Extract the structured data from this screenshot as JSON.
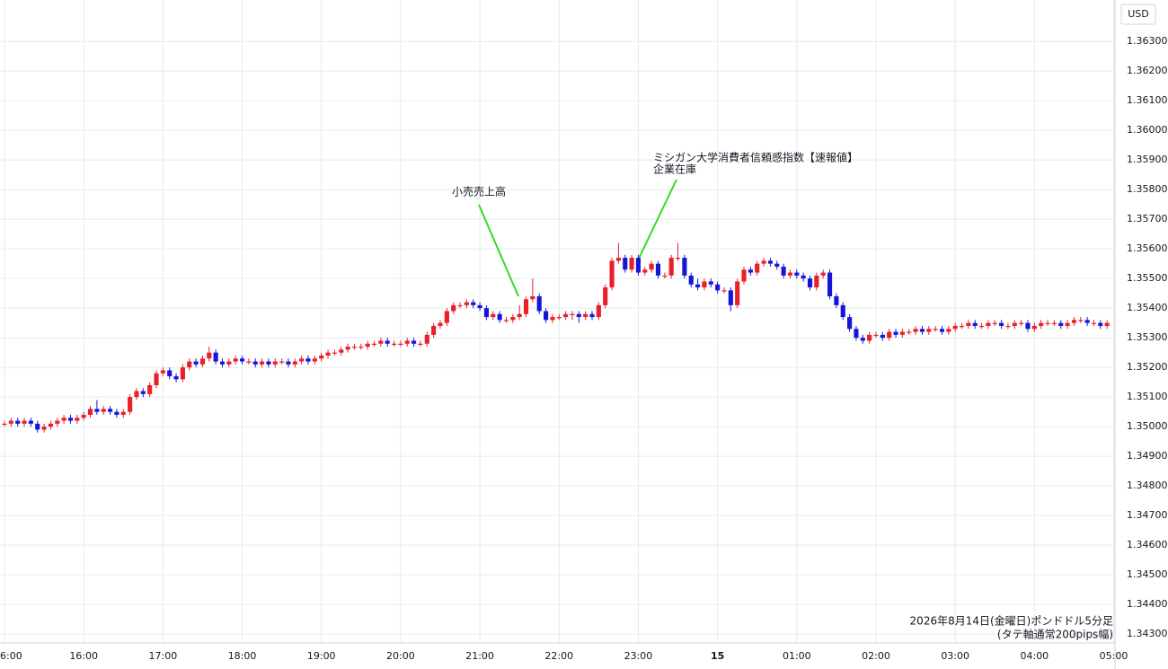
{
  "chart_data": {
    "type": "candlestick",
    "currency": "USD",
    "annotations": [
      "小売売上高",
      "ミシガン大学消費者信頼感指数【速報値】",
      "企業在庫"
    ],
    "footnote": [
      "2026年8月14日(金曜日)ポンドドル5分足",
      "(タテ軸通常200pips幅)"
    ],
    "up_color": "#e8202a",
    "down_color": "#1616d8",
    "grid": true,
    "xlim": [
      -0.68,
      168.2
    ],
    "xticks": [
      {
        "value": 0,
        "label": "6:00"
      },
      {
        "value": 12,
        "label": "16:00"
      },
      {
        "value": 24,
        "label": "17:00"
      },
      {
        "value": 36,
        "label": "18:00"
      },
      {
        "value": 48,
        "label": "19:00"
      },
      {
        "value": 60,
        "label": "20:00"
      },
      {
        "value": 72,
        "label": "21:00"
      },
      {
        "value": 84,
        "label": "22:00"
      },
      {
        "value": 96,
        "label": "23:00"
      },
      {
        "value": 108,
        "label": "15"
      },
      {
        "value": 120,
        "label": "01:00"
      },
      {
        "value": 132,
        "label": "02:00"
      },
      {
        "value": 144,
        "label": "03:00"
      },
      {
        "value": 156,
        "label": "04:00"
      },
      {
        "value": 168,
        "label": "05:00"
      }
    ],
    "ylim": [
      1.3427,
      1.3644
    ],
    "yticks": [
      {
        "value": 1.343,
        "label": "1.34300"
      },
      {
        "value": 1.344,
        "label": "1.34400"
      },
      {
        "value": 1.345,
        "label": "1.34500"
      },
      {
        "value": 1.346,
        "label": "1.34600"
      },
      {
        "value": 1.347,
        "label": "1.34700"
      },
      {
        "value": 1.348,
        "label": "1.34800"
      },
      {
        "value": 1.349,
        "label": "1.34900"
      },
      {
        "value": 1.35,
        "label": "1.35000"
      },
      {
        "value": 1.351,
        "label": "1.35100"
      },
      {
        "value": 1.352,
        "label": "1.35200"
      },
      {
        "value": 1.353,
        "label": "1.35300"
      },
      {
        "value": 1.354,
        "label": "1.35400"
      },
      {
        "value": 1.355,
        "label": "1.35500"
      },
      {
        "value": 1.356,
        "label": "1.35600"
      },
      {
        "value": 1.357,
        "label": "1.35700"
      },
      {
        "value": 1.358,
        "label": "1.35800"
      },
      {
        "value": 1.359,
        "label": "1.35900"
      },
      {
        "value": 1.36,
        "label": "1.36000"
      },
      {
        "value": 1.361,
        "label": "1.36100"
      },
      {
        "value": 1.362,
        "label": "1.36200"
      },
      {
        "value": 1.363,
        "label": "1.36300"
      }
    ],
    "open": [
      1.3501,
      1.3501,
      1.3502,
      1.3501,
      1.3502,
      1.3501,
      1.3499,
      1.35,
      1.3501,
      1.3502,
      1.3503,
      1.3502,
      1.3503,
      1.3504,
      1.3506,
      1.3505,
      1.3506,
      1.3505,
      1.3504,
      1.3505,
      1.351,
      1.3512,
      1.3511,
      1.3514,
      1.3518,
      1.3519,
      1.3517,
      1.3516,
      1.352,
      1.3522,
      1.3521,
      1.3523,
      1.3525,
      1.3522,
      1.3521,
      1.3522,
      1.3523,
      1.3522,
      1.3522,
      1.3521,
      1.3522,
      1.3521,
      1.3522,
      1.3522,
      1.3521,
      1.3522,
      1.3523,
      1.3522,
      1.3523,
      1.3524,
      1.3525,
      1.3525,
      1.3526,
      1.3527,
      1.3527,
      1.3527,
      1.3528,
      1.3528,
      1.3529,
      1.3528,
      1.3528,
      1.3528,
      1.3529,
      1.3528,
      1.3528,
      1.3531,
      1.3534,
      1.3535,
      1.3539,
      1.3541,
      1.3541,
      1.3542,
      1.3541,
      1.354,
      1.3537,
      1.3538,
      1.3536,
      1.3536,
      1.3537,
      1.3538,
      1.3543,
      1.3544,
      1.3539,
      1.3536,
      1.3537,
      1.3537,
      1.3538,
      1.3538,
      1.3537,
      1.3538,
      1.3537,
      1.3541,
      1.3547,
      1.3556,
      1.3557,
      1.3553,
      1.3557,
      1.3552,
      1.3553,
      1.3555,
      1.3551,
      1.3551,
      1.3557,
      1.3557,
      1.3551,
      1.3548,
      1.3547,
      1.3549,
      1.3548,
      1.3546,
      1.3546,
      1.3541,
      1.3549,
      1.3553,
      1.3552,
      1.3555,
      1.3556,
      1.3555,
      1.3554,
      1.3551,
      1.3552,
      1.3551,
      1.355,
      1.3547,
      1.3551,
      1.3552,
      1.3544,
      1.3541,
      1.3537,
      1.3533,
      1.353,
      1.3529,
      1.3531,
      1.3531,
      1.353,
      1.3532,
      1.3531,
      1.3532,
      1.3532,
      1.3533,
      1.3532,
      1.3533,
      1.3533,
      1.3532,
      1.3533,
      1.3534,
      1.3534,
      1.3535,
      1.3534,
      1.3534,
      1.3535,
      1.3535,
      1.3534,
      1.3534,
      1.3535,
      1.3535,
      1.3533,
      1.3534,
      1.3535,
      1.3535,
      1.3535,
      1.3534,
      1.3535,
      1.3536,
      1.3536,
      1.3535,
      1.3535,
      1.3534
    ],
    "high": [
      1.3502,
      1.3503,
      1.3503,
      1.3503,
      1.3503,
      1.3502,
      1.3501,
      1.3502,
      1.3503,
      1.3504,
      1.3504,
      1.3504,
      1.3505,
      1.3507,
      1.3509,
      1.3507,
      1.3507,
      1.3506,
      1.3506,
      1.3511,
      1.3513,
      1.3513,
      1.3515,
      1.3519,
      1.352,
      1.352,
      1.3518,
      1.3521,
      1.3523,
      1.3523,
      1.3524,
      1.3527,
      1.3526,
      1.3523,
      1.3523,
      1.3524,
      1.3524,
      1.3523,
      1.3523,
      1.3523,
      1.3523,
      1.3523,
      1.3523,
      1.3523,
      1.3523,
      1.3524,
      1.3524,
      1.3524,
      1.3525,
      1.3526,
      1.3526,
      1.3527,
      1.3528,
      1.3528,
      1.3528,
      1.3529,
      1.3529,
      1.353,
      1.353,
      1.3529,
      1.3529,
      1.353,
      1.353,
      1.3529,
      1.3532,
      1.3535,
      1.3536,
      1.354,
      1.3542,
      1.3542,
      1.3543,
      1.3543,
      1.3542,
      1.3541,
      1.3539,
      1.3539,
      1.3537,
      1.3538,
      1.3541,
      1.3544,
      1.355,
      1.3545,
      1.354,
      1.3538,
      1.3538,
      1.3539,
      1.3539,
      1.3539,
      1.3539,
      1.3539,
      1.3542,
      1.3548,
      1.3557,
      1.3562,
      1.3558,
      1.3558,
      1.3558,
      1.3554,
      1.3556,
      1.3556,
      1.3552,
      1.3558,
      1.3562,
      1.3558,
      1.3552,
      1.355,
      1.355,
      1.355,
      1.3549,
      1.3547,
      1.3547,
      1.355,
      1.3554,
      1.3554,
      1.3556,
      1.3557,
      1.3557,
      1.3556,
      1.3555,
      1.3553,
      1.3553,
      1.3552,
      1.3551,
      1.3552,
      1.3553,
      1.3553,
      1.3545,
      1.3542,
      1.3538,
      1.3534,
      1.3531,
      1.3532,
      1.3532,
      1.3532,
      1.3533,
      1.3533,
      1.3533,
      1.3533,
      1.3534,
      1.3534,
      1.3534,
      1.3534,
      1.3534,
      1.3534,
      1.3535,
      1.3535,
      1.3536,
      1.3536,
      1.3535,
      1.3536,
      1.3536,
      1.3536,
      1.3535,
      1.3536,
      1.3536,
      1.3536,
      1.3535,
      1.3536,
      1.3536,
      1.3536,
      1.3536,
      1.3536,
      1.3537,
      1.3537,
      1.3537,
      1.3536,
      1.3536,
      1.3536
    ],
    "low": [
      1.35,
      1.35,
      1.35,
      1.35,
      1.35,
      1.3498,
      1.3498,
      1.3499,
      1.35,
      1.3501,
      1.3501,
      1.3501,
      1.3502,
      1.3503,
      1.3504,
      1.3504,
      1.3504,
      1.3503,
      1.3503,
      1.3504,
      1.3509,
      1.351,
      1.351,
      1.3513,
      1.3517,
      1.3516,
      1.3515,
      1.3515,
      1.3519,
      1.352,
      1.352,
      1.3522,
      1.3521,
      1.352,
      1.352,
      1.3521,
      1.3521,
      1.3521,
      1.352,
      1.352,
      1.352,
      1.352,
      1.3521,
      1.352,
      1.352,
      1.3521,
      1.3521,
      1.3521,
      1.3522,
      1.3523,
      1.3524,
      1.3524,
      1.3525,
      1.3526,
      1.3526,
      1.3526,
      1.3527,
      1.3527,
      1.3527,
      1.3527,
      1.3527,
      1.3527,
      1.3527,
      1.3527,
      1.3527,
      1.353,
      1.3533,
      1.3534,
      1.3538,
      1.354,
      1.354,
      1.354,
      1.3539,
      1.3536,
      1.3536,
      1.3535,
      1.3535,
      1.3535,
      1.3536,
      1.3537,
      1.3542,
      1.3538,
      1.3535,
      1.3535,
      1.3536,
      1.3536,
      1.3536,
      1.3535,
      1.3536,
      1.3536,
      1.3536,
      1.354,
      1.3546,
      1.3555,
      1.3552,
      1.3552,
      1.3551,
      1.3551,
      1.3552,
      1.355,
      1.355,
      1.355,
      1.3556,
      1.355,
      1.3547,
      1.3546,
      1.3546,
      1.3547,
      1.3545,
      1.3545,
      1.3539,
      1.354,
      1.3548,
      1.3551,
      1.3551,
      1.3554,
      1.3554,
      1.3553,
      1.355,
      1.355,
      1.355,
      1.3549,
      1.3546,
      1.3546,
      1.355,
      1.3543,
      1.354,
      1.3536,
      1.3532,
      1.3529,
      1.3528,
      1.3528,
      1.353,
      1.3529,
      1.3529,
      1.353,
      1.353,
      1.3531,
      1.3531,
      1.3531,
      1.3531,
      1.3532,
      1.3531,
      1.3531,
      1.3532,
      1.3533,
      1.3533,
      1.3533,
      1.3533,
      1.3533,
      1.3534,
      1.3533,
      1.3533,
      1.3533,
      1.3534,
      1.3532,
      1.3532,
      1.3533,
      1.3534,
      1.3534,
      1.3533,
      1.3533,
      1.3534,
      1.3535,
      1.3534,
      1.3534,
      1.3533,
      1.3533
    ],
    "close": [
      1.3501,
      1.3502,
      1.3501,
      1.3502,
      1.3501,
      1.3499,
      1.35,
      1.3501,
      1.3502,
      1.3503,
      1.3502,
      1.3503,
      1.3504,
      1.3506,
      1.3505,
      1.3506,
      1.3505,
      1.3504,
      1.3505,
      1.351,
      1.3512,
      1.3511,
      1.3514,
      1.3518,
      1.3519,
      1.3517,
      1.3516,
      1.352,
      1.3522,
      1.3521,
      1.3523,
      1.3525,
      1.3522,
      1.3521,
      1.3522,
      1.3523,
      1.3522,
      1.3522,
      1.3521,
      1.3522,
      1.3521,
      1.3522,
      1.3522,
      1.3521,
      1.3522,
      1.3523,
      1.3522,
      1.3523,
      1.3524,
      1.3525,
      1.3525,
      1.3526,
      1.3527,
      1.3527,
      1.3527,
      1.3528,
      1.3528,
      1.3529,
      1.3528,
      1.3528,
      1.3528,
      1.3529,
      1.3528,
      1.3528,
      1.3531,
      1.3534,
      1.3535,
      1.3539,
      1.3541,
      1.3541,
      1.3542,
      1.3541,
      1.354,
      1.3537,
      1.3538,
      1.3536,
      1.3536,
      1.3537,
      1.3538,
      1.3543,
      1.3544,
      1.3539,
      1.3536,
      1.3537,
      1.3537,
      1.3538,
      1.3538,
      1.3537,
      1.3538,
      1.3537,
      1.3541,
      1.3547,
      1.3556,
      1.3557,
      1.3553,
      1.3557,
      1.3552,
      1.3553,
      1.3555,
      1.3551,
      1.3551,
      1.3557,
      1.3557,
      1.3551,
      1.3548,
      1.3547,
      1.3549,
      1.3548,
      1.3546,
      1.3546,
      1.3541,
      1.3549,
      1.3553,
      1.3552,
      1.3555,
      1.3556,
      1.3555,
      1.3554,
      1.3551,
      1.3552,
      1.3551,
      1.355,
      1.3547,
      1.3551,
      1.3552,
      1.3544,
      1.3541,
      1.3537,
      1.3533,
      1.353,
      1.3529,
      1.3531,
      1.3531,
      1.353,
      1.3532,
      1.3531,
      1.3532,
      1.3532,
      1.3533,
      1.3532,
      1.3533,
      1.3533,
      1.3532,
      1.3533,
      1.3534,
      1.3534,
      1.3535,
      1.3534,
      1.3534,
      1.3535,
      1.3535,
      1.3534,
      1.3534,
      1.3535,
      1.3535,
      1.3533,
      1.3534,
      1.3535,
      1.3535,
      1.3535,
      1.3534,
      1.3535,
      1.3536,
      1.3536,
      1.3535,
      1.3535,
      1.3534,
      1.3535
    ]
  }
}
